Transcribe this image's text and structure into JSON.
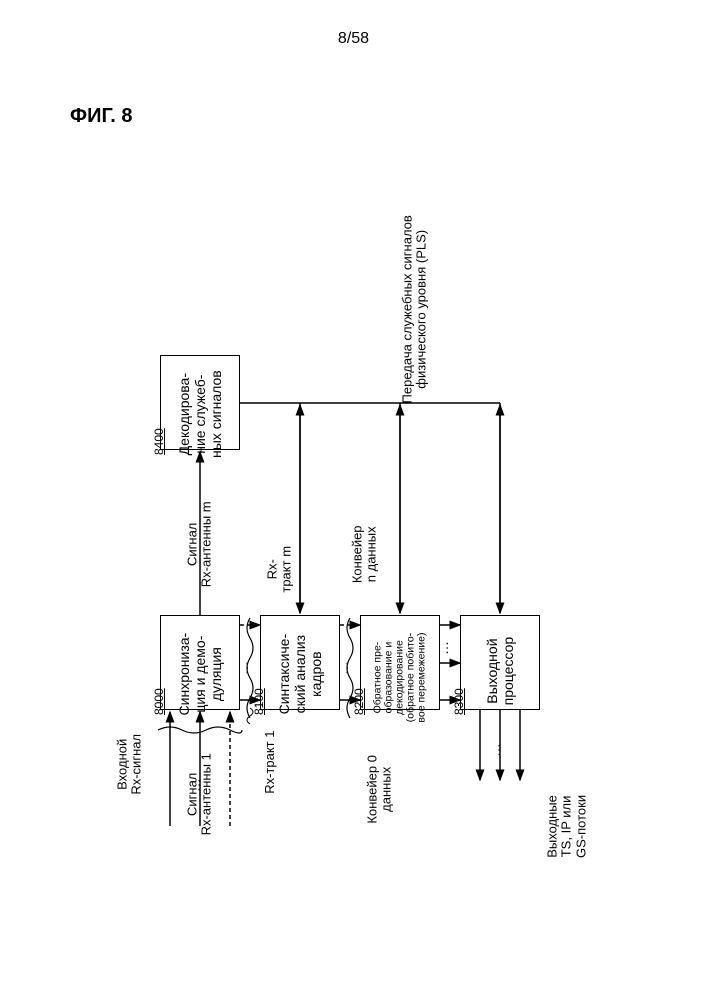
{
  "page_number": "8/58",
  "figure_label": "ФИГ. 8",
  "colors": {
    "background": "#ffffff",
    "line": "#000000",
    "text": "#000000"
  },
  "line_width": 1.5,
  "font_size_label": 14,
  "font_size_ref": 12,
  "font_size_side": 13,
  "blocks": {
    "b1": {
      "ref": "8000",
      "label": "Синхрониза-\nция и демо-\nдуляция"
    },
    "b2": {
      "ref": "8100",
      "label": "Синтаксиче-\nский анализ\nкадров"
    },
    "b3": {
      "ref": "8200",
      "label": "Обратное пре-\nобразование и\nдекодирование\n(обратное побито-\nвое перемежение)"
    },
    "b4": {
      "ref": "8300",
      "label": "Выходной\nпроцессор"
    },
    "b5": {
      "ref": "8400",
      "label": "Декодирова-\nние служеб-\nных сигналов"
    }
  },
  "side_labels": {
    "input": "Входной\nRx-сигнал",
    "ant1": "Сигнал\nRx-антенны 1",
    "antm": "Сигнал\nRx-антенны m",
    "rx1": "Rx-тракт 1",
    "rxm": "Rx-\nтракт m",
    "conv0": "Конвейер 0\nданных",
    "convn": "Конвейер\nn данных",
    "output": "Выходные\nTS, IP или\nGS-потоки",
    "pls": "Передача служебных сигналов\nфизического уровня (PLS)"
  },
  "ellipsis": "…"
}
